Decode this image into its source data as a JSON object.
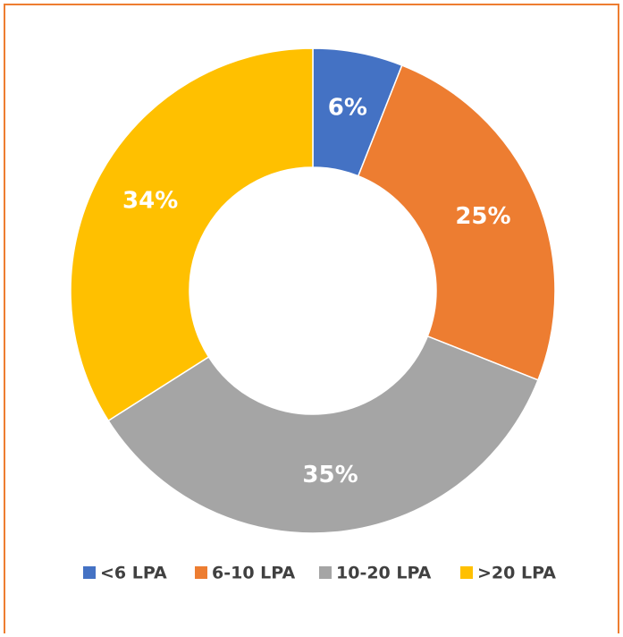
{
  "chart_data": {
    "type": "donut",
    "categories": [
      "<6 LPA",
      "6-10 LPA",
      "10-20 LPA",
      ">20 LPA"
    ],
    "values": [
      6,
      25,
      35,
      34
    ],
    "value_labels": [
      "6%",
      "25%",
      "35%",
      "34%"
    ],
    "colors": [
      "#4472c4",
      "#ed7d31",
      "#a5a5a5",
      "#ffc000"
    ],
    "legend": "bottom"
  }
}
